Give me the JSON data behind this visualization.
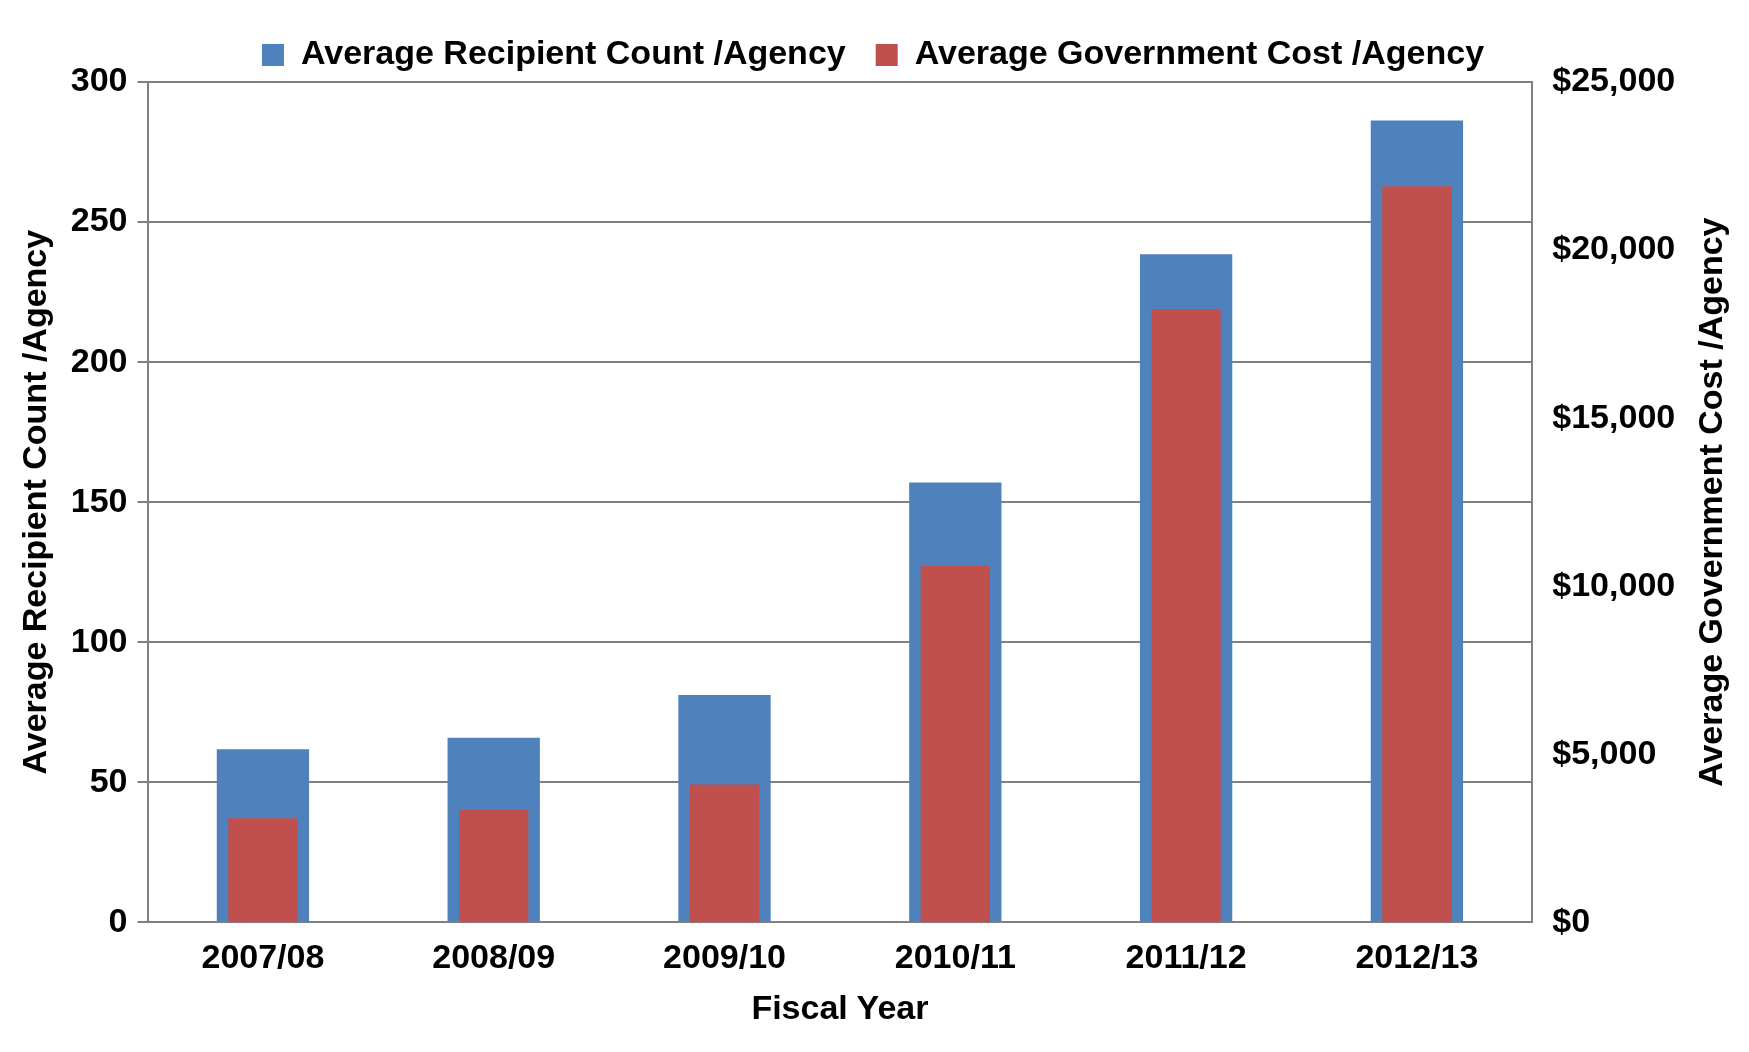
{
  "chart_data": {
    "type": "bar",
    "xlabel": "Fiscal Year",
    "ylabel": "Average Recipient Count /Agency",
    "y2label": "Average Government Cost /Agency",
    "categories": [
      "2007/08",
      "2008/09",
      "2009/10",
      "2010/11",
      "2011/12",
      "2012/13"
    ],
    "series": [
      {
        "name": "Average Recipient Count /Agency",
        "color": "#4f81bd",
        "values": [
          61.8,
          65.9,
          81.2,
          157,
          238.5,
          286.3
        ]
      },
      {
        "name": "Average Government Cost /Agency",
        "color": "#c0504d",
        "axis": "y2",
        "values": [
          3100,
          3350,
          4100,
          10600,
          18250,
          21900
        ]
      }
    ],
    "ylim": [
      0,
      300
    ],
    "yticks": [
      0,
      50,
      100,
      150,
      200,
      250,
      300
    ],
    "y2lim": [
      0,
      25000
    ],
    "y2ticks": [
      {
        "value": 0,
        "label": "$0"
      },
      {
        "value": 5000,
        "label": "$5,000"
      },
      {
        "value": 10000,
        "label": "$10,000"
      },
      {
        "value": 15000,
        "label": "$15,000"
      },
      {
        "value": 20000,
        "label": "$20,000"
      },
      {
        "value": 25000,
        "label": "$25,000"
      }
    ],
    "grid": "y",
    "legend": "top"
  }
}
